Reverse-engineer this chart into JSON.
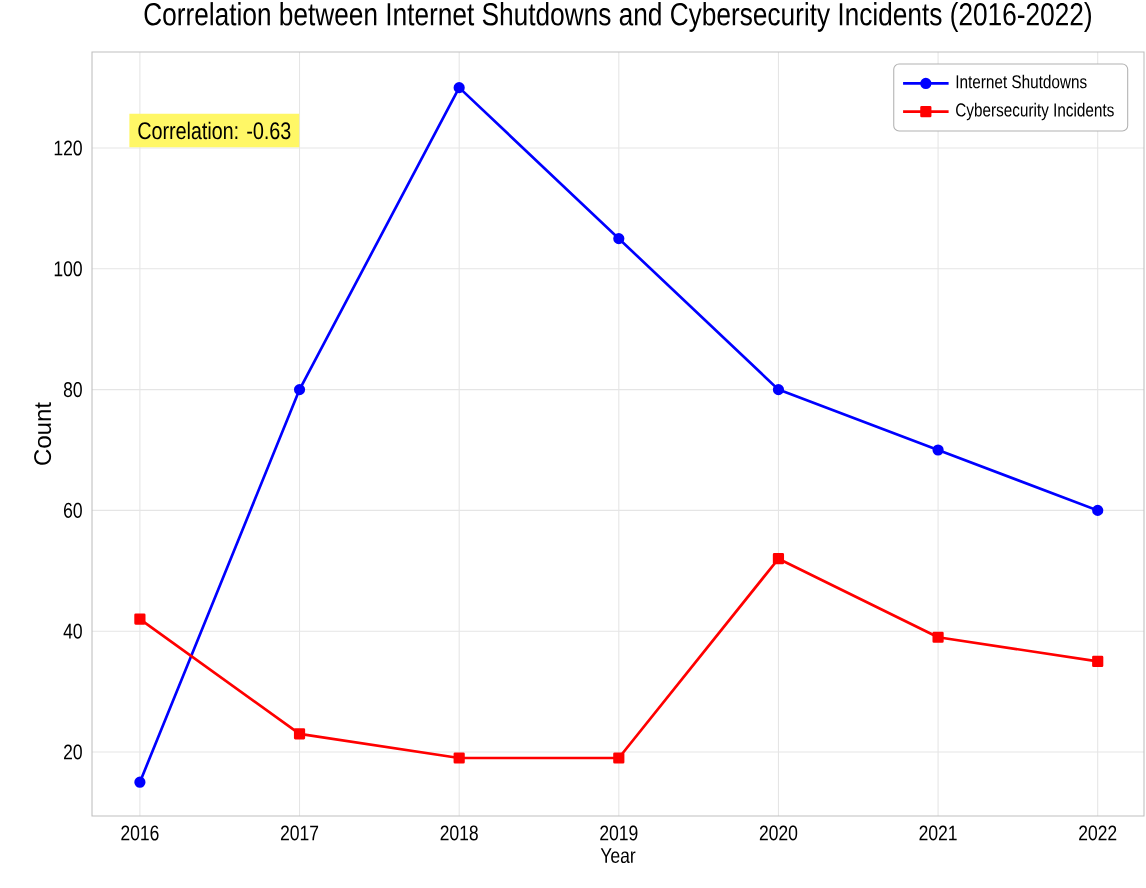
{
  "chart_data": {
    "type": "line",
    "title": "Correlation between Internet Shutdowns and Cybersecurity Incidents (2016-2022)",
    "xlabel": "Year",
    "ylabel": "Count",
    "x": [
      2016,
      2017,
      2018,
      2019,
      2020,
      2021,
      2022
    ],
    "series": [
      {
        "name": "Internet Shutdowns",
        "color": "#0000ff",
        "marker": "circle",
        "values": [
          15,
          80,
          130,
          105,
          80,
          70,
          60
        ]
      },
      {
        "name": "Cybersecurity Incidents",
        "color": "#ff0000",
        "marker": "square",
        "values": [
          42,
          23,
          19,
          19,
          52,
          39,
          35
        ]
      }
    ],
    "xlim": [
      2015.7,
      2022.29
    ],
    "ylim": [
      9.4,
      135.9
    ],
    "xticks": [
      2016,
      2017,
      2018,
      2019,
      2020,
      2021,
      2022
    ],
    "yticks": [
      20,
      40,
      60,
      80,
      100,
      120
    ],
    "grid": true,
    "legend": "top right",
    "line_style": "solid",
    "annotations": [
      "Correlation: -0.63"
    ]
  }
}
